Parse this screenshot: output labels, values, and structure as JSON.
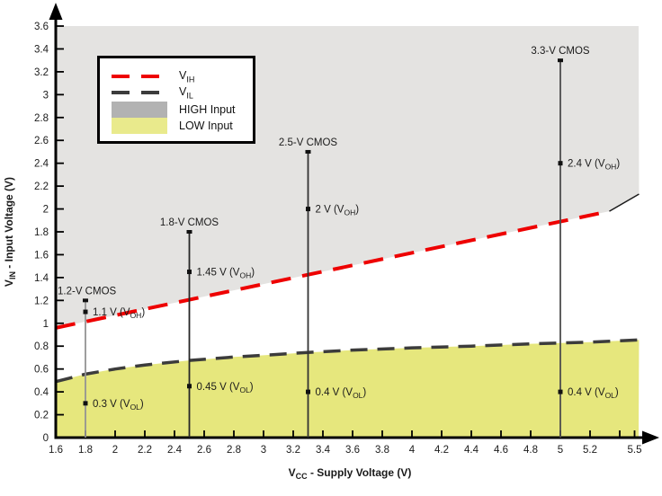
{
  "chart_data": {
    "type": "line",
    "title": "",
    "xlabel": {
      "prefix": "V",
      "sub": "CC",
      "suffix": " - Supply Voltage (V)"
    },
    "ylabel": {
      "prefix": "V",
      "sub": "IN",
      "suffix": " - Input Voltage (V)"
    },
    "xlim": [
      1.6,
      5.5
    ],
    "ylim": [
      0,
      3.6
    ],
    "grid": false,
    "colors": {
      "vih": "#ee0000",
      "vil": "#3c3c3c",
      "high_region": "#e4e3e1",
      "low_region": "#e6e77d",
      "legend_high_swatch": "#b2b2b2",
      "legend_low_swatch": "#e9ea8c",
      "axis": "#000000"
    },
    "x_ticks": [
      {
        "v": 1.6,
        "label": "1.6"
      },
      {
        "v": 1.8,
        "label": "1.8"
      },
      {
        "v": 2,
        "label": "2"
      },
      {
        "v": 2.2,
        "label": "2.2"
      },
      {
        "v": 2.4,
        "label": "2.4"
      },
      {
        "v": 2.6,
        "label": "2.6"
      },
      {
        "v": 2.8,
        "label": "2.8"
      },
      {
        "v": 3,
        "label": "3"
      },
      {
        "v": 3.2,
        "label": "3.2"
      },
      {
        "v": 3.4,
        "label": "3.4"
      },
      {
        "v": 3.6,
        "label": "3.6"
      },
      {
        "v": 3.8,
        "label": "3.8"
      },
      {
        "v": 4,
        "label": "4"
      },
      {
        "v": 4.2,
        "label": "4.2"
      },
      {
        "v": 4.4,
        "label": "4.4"
      },
      {
        "v": 4.6,
        "label": "4.6"
      },
      {
        "v": 4.8,
        "label": "4.8"
      },
      {
        "v": 5,
        "label": "5"
      },
      {
        "v": 5.2,
        "label": "5.2"
      },
      {
        "v": 5.4,
        "label": ""
      },
      {
        "v": 5.5,
        "label": "5.5"
      }
    ],
    "y_ticks": [
      {
        "v": 0,
        "label": "0"
      },
      {
        "v": 0.2,
        "label": "0.2"
      },
      {
        "v": 0.4,
        "label": "0.4"
      },
      {
        "v": 0.6,
        "label": "0.6"
      },
      {
        "v": 0.8,
        "label": "0.8"
      },
      {
        "v": 1,
        "label": "1"
      },
      {
        "v": 1.2,
        "label": "1.2"
      },
      {
        "v": 1.4,
        "label": "1.4"
      },
      {
        "v": 1.6,
        "label": "1.6"
      },
      {
        "v": 1.8,
        "label": "1.8"
      },
      {
        "v": 2,
        "label": "2"
      },
      {
        "v": 2.2,
        "label": "2.2"
      },
      {
        "v": 2.4,
        "label": "2.4"
      },
      {
        "v": 2.6,
        "label": "2.6"
      },
      {
        "v": 2.8,
        "label": "2.8"
      },
      {
        "v": 3,
        "label": "3"
      },
      {
        "v": 3.2,
        "label": "3.2"
      },
      {
        "v": 3.4,
        "label": "3.4"
      },
      {
        "v": 3.6,
        "label": "3.6"
      }
    ],
    "series": [
      {
        "name": "VIH",
        "style": "dashed",
        "color": "#ee0000",
        "width": 4,
        "dash": "22 13",
        "points": [
          [
            1.6,
            0.96
          ],
          [
            5.33,
            1.98
          ]
        ]
      },
      {
        "name": "VIH-region-edge",
        "style": "solid",
        "color": "#1a1a1a",
        "width": 1.5,
        "points": [
          [
            5.33,
            1.98
          ],
          [
            5.53,
            2.13
          ]
        ]
      },
      {
        "name": "VIL",
        "style": "dashed",
        "color": "#3c3c3c",
        "width": 3.5,
        "dash": "19 11",
        "points": [
          [
            1.6,
            0.49
          ],
          [
            1.8,
            0.555
          ],
          [
            2.0,
            0.6
          ],
          [
            2.2,
            0.635
          ],
          [
            2.5,
            0.675
          ],
          [
            2.8,
            0.705
          ],
          [
            3.0,
            0.72
          ],
          [
            3.3,
            0.745
          ],
          [
            3.6,
            0.765
          ],
          [
            4.0,
            0.785
          ],
          [
            4.4,
            0.8
          ],
          [
            4.8,
            0.82
          ],
          [
            5.2,
            0.835
          ],
          [
            5.53,
            0.855
          ]
        ]
      }
    ],
    "regions": [
      {
        "name": "HIGH Input",
        "side": "above_vih",
        "top": 3.6,
        "color": "#e4e3e1"
      },
      {
        "name": "LOW Input",
        "side": "below_vil",
        "bottom": 0,
        "color": "#e6e77d"
      }
    ],
    "annotations": [
      {
        "label": "1.2-V CMOS",
        "label_align": "edge",
        "x": 1.8,
        "top": 1.2,
        "line_color": "#949494",
        "voh": {
          "v": 1.1,
          "prefix": "1.1 V (V",
          "sub": "OH",
          "suffix": ")"
        },
        "vol": {
          "v": 0.3,
          "prefix": "0.3 V (V",
          "sub": "OL",
          "suffix": ")"
        }
      },
      {
        "label": "1.8-V CMOS",
        "label_align": "center",
        "x": 2.5,
        "top": 1.8,
        "line_color": "#262626",
        "voh": {
          "v": 1.45,
          "prefix": "1.45 V (V",
          "sub": "OH",
          "suffix": ")"
        },
        "vol": {
          "v": 0.45,
          "prefix": "0.45 V (V",
          "sub": "OL",
          "suffix": ")"
        }
      },
      {
        "label": "2.5-V CMOS",
        "label_align": "center",
        "x": 3.3,
        "top": 2.5,
        "line_color": "#333333",
        "voh": {
          "v": 2,
          "prefix": "2 V (V",
          "sub": "OH",
          "suffix": ")"
        },
        "vol": {
          "v": 0.4,
          "prefix": "0.4 V (V",
          "sub": "OL",
          "suffix": ")"
        }
      },
      {
        "label": "3.3-V CMOS",
        "label_align": "center",
        "x": 5,
        "top": 3.3,
        "line_color": "#4d4d4d",
        "voh": {
          "v": 2.4,
          "prefix": "2.4 V (V",
          "sub": "OH",
          "suffix": ")"
        },
        "vol": {
          "v": 0.4,
          "prefix": "0.4 V (V",
          "sub": "OL",
          "suffix": ")"
        }
      }
    ],
    "legend": {
      "position": "top-left",
      "entries": [
        {
          "swatch": "dash",
          "color": "#ee0000",
          "prefix": "V",
          "sub": "IH",
          "suffix": ""
        },
        {
          "swatch": "dash",
          "color": "#3c3c3c",
          "prefix": "V",
          "sub": "IL",
          "suffix": ""
        },
        {
          "swatch": "fill",
          "color": "#b2b2b2",
          "prefix": "HIGH Input",
          "sub": "",
          "suffix": ""
        },
        {
          "swatch": "fill",
          "color": "#e9ea8c",
          "prefix": "LOW Input",
          "sub": "",
          "suffix": ""
        }
      ]
    }
  }
}
